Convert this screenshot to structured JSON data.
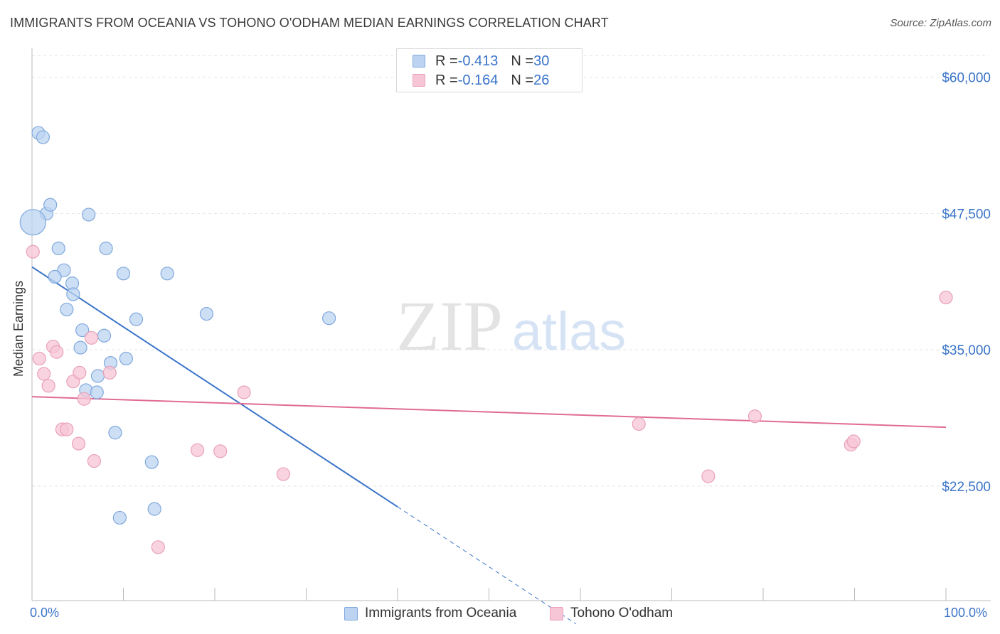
{
  "title": "IMMIGRANTS FROM OCEANIA VS TOHONO O'ODHAM MEDIAN EARNINGS CORRELATION CHART",
  "source": "Source: ZipAtlas.com",
  "watermark": {
    "zip": "ZIP",
    "atlas": "atlas"
  },
  "legend_top": [
    {
      "r_label": "R = ",
      "r_value": "-0.413",
      "n_label": "N = ",
      "n_value": "30"
    },
    {
      "r_label": "R = ",
      "r_value": "-0.164",
      "n_label": "N = ",
      "n_value": "26"
    }
  ],
  "colors": {
    "blue_fill": "#bcd4f2",
    "blue_stroke": "#7fa8dc",
    "blue_line": "#3a74c9",
    "pink_fill": "#f7c6d6",
    "pink_stroke": "#e9a0b9",
    "pink_line": "#e06b95",
    "grid": "#e3e3e3",
    "axis_text": "#3a74c9"
  },
  "chart_data": {
    "type": "scatter",
    "title": "IMMIGRANTS FROM OCEANIA VS TOHONO O'ODHAM MEDIAN EARNINGS CORRELATION CHART",
    "xlabel": "",
    "ylabel": "Median Earnings",
    "xlim": [
      0,
      100
    ],
    "ylim": [
      12000,
      62000
    ],
    "x_tick_labels": [
      "0.0%",
      "100.0%"
    ],
    "y_ticks": [
      {
        "value": 60000,
        "label": "$60,000"
      },
      {
        "value": 47500,
        "label": "$47,500"
      },
      {
        "value": 35000,
        "label": "$35,000"
      },
      {
        "value": 22500,
        "label": "$22,500"
      }
    ],
    "grid": true,
    "series": [
      {
        "name": "Immigrants from Oceania",
        "color": "blue",
        "points": [
          {
            "x": 0.7,
            "y": 54900
          },
          {
            "x": 1.2,
            "y": 54500
          },
          {
            "x": 1.6,
            "y": 47500
          },
          {
            "x": 2.0,
            "y": 48300
          },
          {
            "x": 0.1,
            "y": 46700,
            "size": "large"
          },
          {
            "x": 2.9,
            "y": 44300
          },
          {
            "x": 3.5,
            "y": 42300
          },
          {
            "x": 2.5,
            "y": 41700
          },
          {
            "x": 4.4,
            "y": 41100
          },
          {
            "x": 4.5,
            "y": 40100
          },
          {
            "x": 3.8,
            "y": 38700
          },
          {
            "x": 6.2,
            "y": 47400
          },
          {
            "x": 8.1,
            "y": 44300
          },
          {
            "x": 10.0,
            "y": 42000
          },
          {
            "x": 14.8,
            "y": 42000
          },
          {
            "x": 11.4,
            "y": 37800
          },
          {
            "x": 19.1,
            "y": 38300
          },
          {
            "x": 32.5,
            "y": 37900
          },
          {
            "x": 5.5,
            "y": 36800
          },
          {
            "x": 7.9,
            "y": 36300
          },
          {
            "x": 5.3,
            "y": 35200
          },
          {
            "x": 8.6,
            "y": 33800
          },
          {
            "x": 10.3,
            "y": 34200
          },
          {
            "x": 7.2,
            "y": 32600
          },
          {
            "x": 5.9,
            "y": 31300
          },
          {
            "x": 7.1,
            "y": 31100
          },
          {
            "x": 9.1,
            "y": 27400
          },
          {
            "x": 13.1,
            "y": 24700
          },
          {
            "x": 13.4,
            "y": 20400
          },
          {
            "x": 9.6,
            "y": 19600
          }
        ],
        "trend": {
          "x0": 0,
          "y0": 42600,
          "x1": 40,
          "y1": 20600,
          "dashed_to_x": 59.5
        }
      },
      {
        "name": "Tohono O'odham",
        "color": "pink",
        "points": [
          {
            "x": 0.1,
            "y": 44000
          },
          {
            "x": 0.8,
            "y": 34200
          },
          {
            "x": 1.3,
            "y": 32800
          },
          {
            "x": 1.8,
            "y": 31700
          },
          {
            "x": 2.3,
            "y": 35300
          },
          {
            "x": 2.7,
            "y": 34800
          },
          {
            "x": 3.3,
            "y": 27700
          },
          {
            "x": 3.8,
            "y": 27700
          },
          {
            "x": 4.5,
            "y": 32100
          },
          {
            "x": 5.2,
            "y": 32900
          },
          {
            "x": 5.7,
            "y": 30500
          },
          {
            "x": 6.5,
            "y": 36100
          },
          {
            "x": 8.5,
            "y": 32900
          },
          {
            "x": 5.1,
            "y": 26400
          },
          {
            "x": 6.8,
            "y": 24800
          },
          {
            "x": 13.8,
            "y": 16900
          },
          {
            "x": 18.1,
            "y": 25800
          },
          {
            "x": 20.6,
            "y": 25700
          },
          {
            "x": 23.2,
            "y": 31100
          },
          {
            "x": 27.5,
            "y": 23600
          },
          {
            "x": 66.4,
            "y": 28200
          },
          {
            "x": 74.0,
            "y": 23400
          },
          {
            "x": 79.1,
            "y": 28900
          },
          {
            "x": 89.6,
            "y": 26300
          },
          {
            "x": 89.9,
            "y": 26600
          },
          {
            "x": 100,
            "y": 39800
          }
        ],
        "trend": {
          "x0": 0,
          "y0": 30700,
          "x1": 100,
          "y1": 27900
        }
      }
    ]
  },
  "legend_bottom": [
    {
      "label": "Immigrants from Oceania",
      "color": "blue"
    },
    {
      "label": "Tohono O'odham",
      "color": "pink"
    }
  ]
}
